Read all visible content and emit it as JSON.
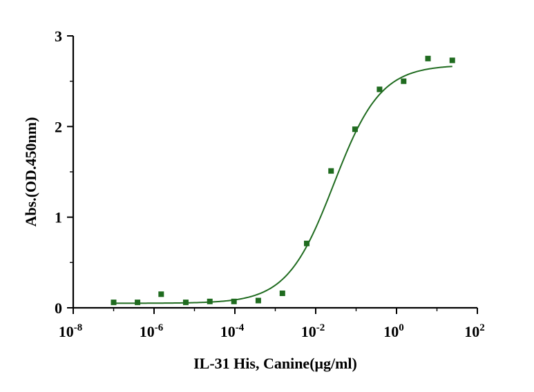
{
  "chart_data": {
    "type": "scatter",
    "xlabel": "IL-31 His, Canine(μg/ml)",
    "ylabel": "Abs.(OD.450nm)",
    "xscale": "log10",
    "xlim": [
      1e-08,
      100
    ],
    "ylim": [
      0,
      3
    ],
    "x_ticks": [
      {
        "base": "10",
        "exp": "-8"
      },
      {
        "base": "10",
        "exp": "-6"
      },
      {
        "base": "10",
        "exp": "-4"
      },
      {
        "base": "10",
        "exp": "-2"
      },
      {
        "base": "10",
        "exp": "0"
      },
      {
        "base": "10",
        "exp": "2"
      }
    ],
    "y_ticks": [
      "0",
      "1",
      "2",
      "3"
    ],
    "grid": false,
    "legend": "none",
    "colors": {
      "series": "#1f6b1f"
    },
    "series": [
      {
        "x": [
          1e-07,
          3.9e-07,
          1.5e-06,
          6.1e-06,
          2.4e-05,
          9.5e-05,
          0.00038,
          0.0015,
          0.006,
          0.024,
          0.094,
          0.38,
          1.5,
          6.0,
          24
        ],
        "y": [
          0.06,
          0.06,
          0.15,
          0.06,
          0.07,
          0.07,
          0.08,
          0.16,
          0.71,
          1.51,
          1.97,
          2.41,
          2.5,
          2.75,
          2.73
        ]
      }
    ],
    "fit": {
      "model": "4PL",
      "bottom": 0.05,
      "top": 2.68,
      "ec50": 0.028,
      "hill": 0.75
    }
  }
}
